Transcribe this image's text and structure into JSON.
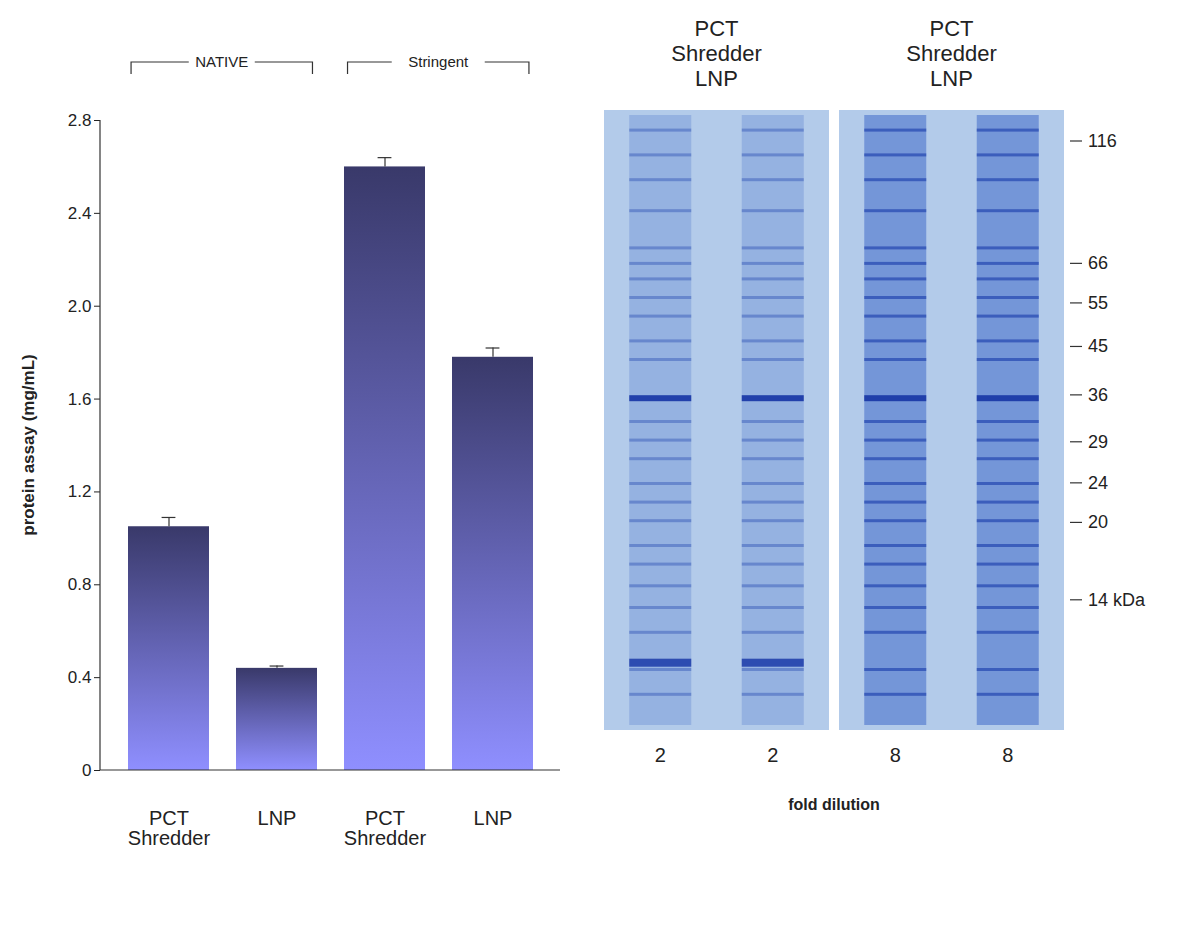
{
  "chart_data": {
    "type": "bar",
    "categories": [
      "PCT Shredder",
      "LNP",
      "PCT Shredder",
      "LNP"
    ],
    "group_labels": [
      "NATIVE",
      "NATIVE",
      "Stringent",
      "Stringent"
    ],
    "values": [
      1.05,
      0.44,
      2.6,
      1.78
    ],
    "errors": [
      0.04,
      0.01,
      0.04,
      0.04
    ],
    "ylabel": "protein assay (mg/mL)",
    "ylim": [
      0,
      2.8
    ],
    "yticks": [
      0,
      0.4,
      0.8,
      1.2,
      1.6,
      {
        "value": 2,
        "label": "2.0"
      },
      2.4,
      2.8
    ],
    "color": "#5a5aa8",
    "grid": false
  },
  "gel": {
    "panel_headers": [
      "PCT Shredder LNP",
      "PCT Shredder LNP"
    ],
    "lane_labels": [
      2,
      2,
      8,
      8
    ],
    "xlabel": "fold dilution",
    "markers": [
      116,
      66,
      55,
      45,
      36,
      29,
      24,
      20,
      {
        "value": 14,
        "label": "14 kDa"
      }
    ]
  }
}
